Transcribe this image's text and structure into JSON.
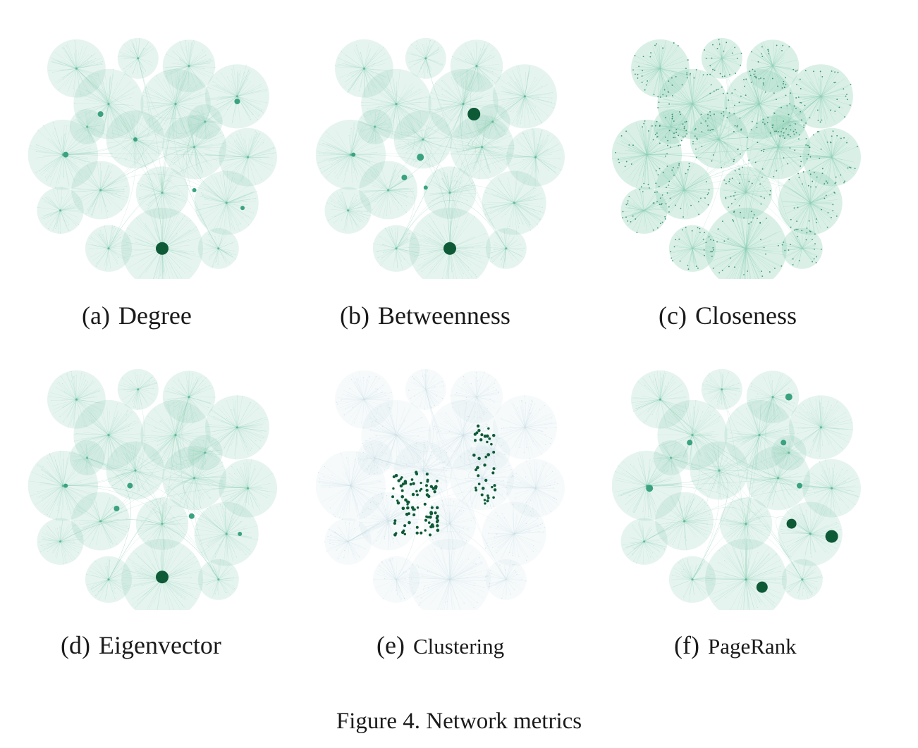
{
  "figure": {
    "caption": "Figure 4. Network metrics",
    "colors": {
      "edge": "#8ccfb5",
      "hub_light": "#3aa27e",
      "hub_dark": "#0e5a36",
      "node_pale": "#b9e2d2",
      "clustering_pale": "#c7dde6"
    },
    "panels": [
      {
        "id": "a",
        "letter": "(a)",
        "metric": "Degree",
        "highlight": "largest hub at bottom center"
      },
      {
        "id": "b",
        "letter": "(b)",
        "metric": "Betweenness",
        "highlight": "two dark hubs: top-right and bottom center"
      },
      {
        "id": "c",
        "letter": "(c)",
        "metric": "Closeness",
        "highlight": "all nodes darkened, dense dotted clusters"
      },
      {
        "id": "d",
        "letter": "(d)",
        "metric": "Eigenvector",
        "highlight": "dark hub at bottom center"
      },
      {
        "id": "e",
        "letter": "(e)",
        "metric": "Clustering",
        "highlight": "scattered dark points in two central groups"
      },
      {
        "id": "f",
        "letter": "(f)",
        "metric": "PageRank",
        "highlight": "several dark hubs, strongest lower right"
      }
    ]
  }
}
